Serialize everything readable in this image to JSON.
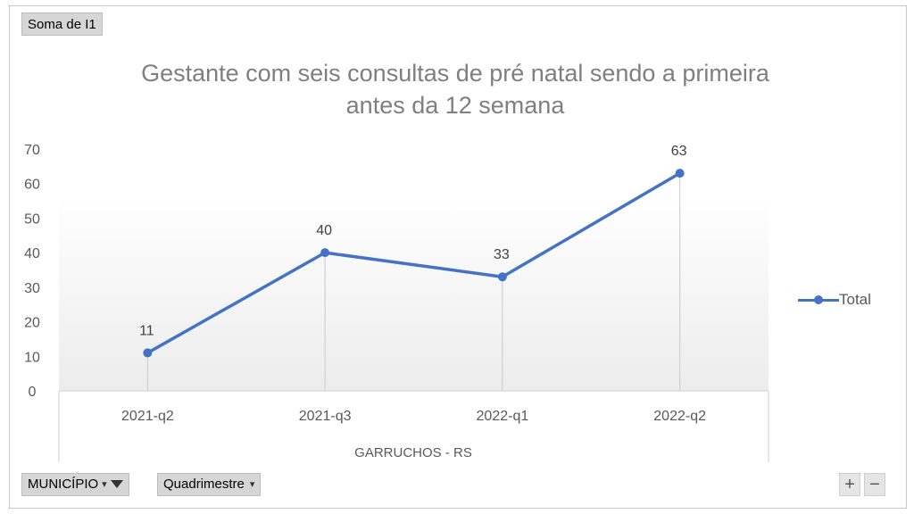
{
  "field_button": {
    "label": "Soma de I1"
  },
  "chart_data": {
    "type": "line",
    "title": "Gestante com seis consultas de pré natal sendo a primeira antes da 12 semana",
    "title_lines": [
      "Gestante com seis consultas de pré natal sendo a primeira",
      "antes da 12 semana"
    ],
    "categories": [
      "2021-q2",
      "2021-q3",
      "2022-q1",
      "2022-q2"
    ],
    "series": [
      {
        "name": "Total",
        "values": [
          11,
          40,
          33,
          63
        ],
        "color": "#4472c4"
      }
    ],
    "data_labels": [
      "11",
      "40",
      "33",
      "63"
    ],
    "group_label": "GARRUCHOS - RS",
    "ylim": [
      0,
      70
    ],
    "y_ticks": [
      "0",
      "10",
      "20",
      "30",
      "40",
      "50",
      "60",
      "70"
    ],
    "grid": false,
    "drop_lines": true,
    "legend_position": "right"
  },
  "legend": {
    "label": "Total"
  },
  "filters": {
    "municipio": {
      "label": "MUNICÍPIO",
      "icon": "filter-icon"
    },
    "quadrimestre": {
      "label": "Quadrimestre",
      "icon": "dropdown-arrow-icon"
    }
  },
  "zoom": {
    "plus": "+",
    "minus": "−"
  }
}
